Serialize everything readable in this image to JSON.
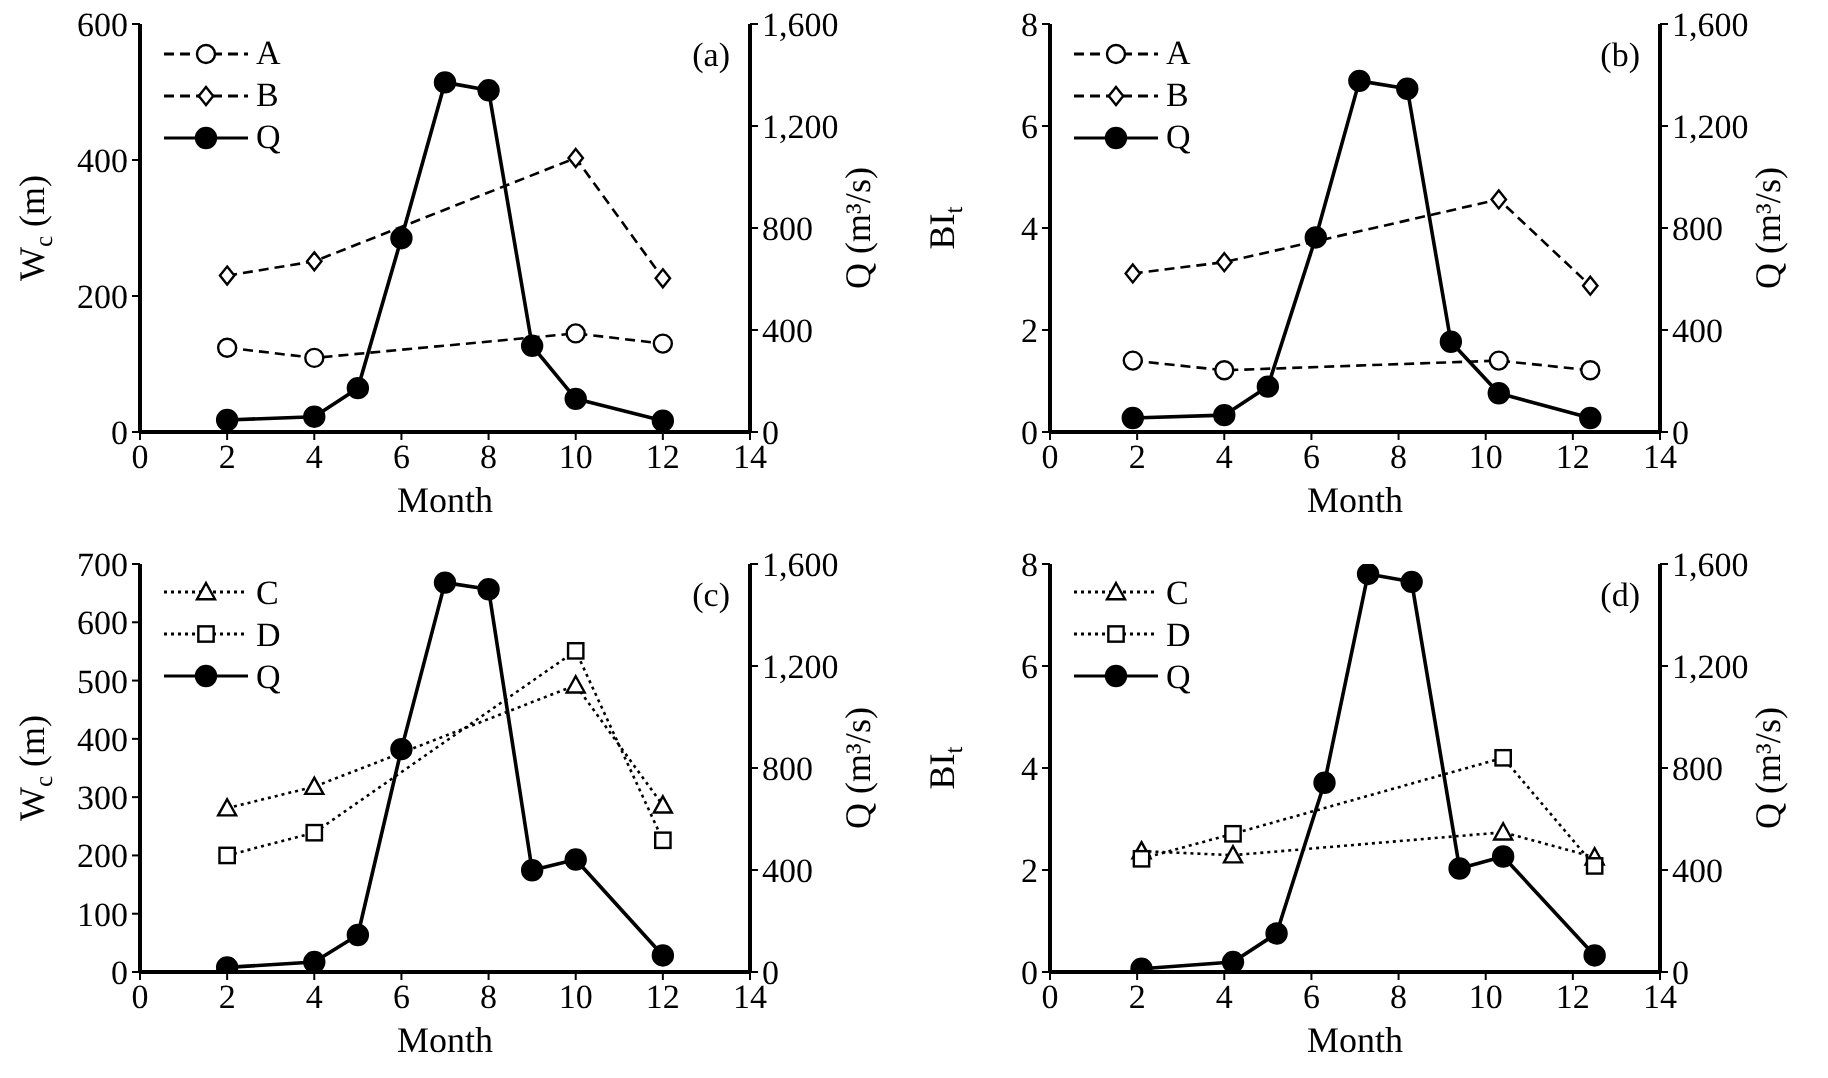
{
  "chart_data": [
    {
      "type": "line",
      "xlabel": "Month",
      "ylabel": "W$_{c}$ (m)",
      "y2label": "Q (m³/s)",
      "annotations": [
        "(a)"
      ],
      "xlim": [
        0,
        14
      ],
      "xticks": [
        0,
        2,
        4,
        6,
        8,
        10,
        12,
        14
      ],
      "ylim": [
        0,
        600
      ],
      "yticks": [
        0,
        200,
        400,
        600
      ],
      "y2lim": [
        0,
        1600
      ],
      "y2ticks": [
        {
          "value": 0,
          "label": "0"
        },
        {
          "value": 400,
          "label": "400"
        },
        {
          "value": 800,
          "label": "800"
        },
        {
          "value": 1200,
          "label": "1,200"
        },
        {
          "value": 1600,
          "label": "1,600"
        }
      ],
      "legend": "top left",
      "grid": false,
      "series": [
        {
          "name": "A",
          "color": "#000000",
          "marker": "circle",
          "line_style": "dashed",
          "x": [
            2,
            4,
            10,
            12
          ],
          "values": [
            124,
            109,
            145,
            130
          ]
        },
        {
          "name": "B",
          "color": "#000000",
          "marker": "diamond",
          "line_style": "dashed",
          "x": [
            2,
            4,
            10,
            12
          ],
          "values": [
            230,
            251,
            403,
            226
          ]
        },
        {
          "name": "Q",
          "color": "#000000",
          "marker": "circle",
          "line_style": "solid",
          "axis": "y2",
          "x": [
            2,
            4,
            5,
            6,
            7,
            8,
            9,
            10,
            12
          ],
          "values": [
            47,
            60,
            172,
            760,
            1371,
            1340,
            338,
            130,
            44
          ]
        }
      ]
    },
    {
      "type": "line",
      "xlabel": "Month",
      "ylabel": "BI$_{t}$",
      "y2label": "Q (m³/s)",
      "annotations": [
        "(b)"
      ],
      "xlim": [
        0,
        14
      ],
      "xticks": [
        0,
        2,
        4,
        6,
        8,
        10,
        12,
        14
      ],
      "ylim": [
        0,
        8
      ],
      "yticks": [
        0,
        2,
        4,
        6,
        8
      ],
      "y2lim": [
        0,
        1600
      ],
      "y2ticks": [
        {
          "value": 0,
          "label": "0"
        },
        {
          "value": 400,
          "label": "400"
        },
        {
          "value": 800,
          "label": "800"
        },
        {
          "value": 1200,
          "label": "1,200"
        },
        {
          "value": 1600,
          "label": "1,600"
        }
      ],
      "legend": "top left",
      "grid": false,
      "series": [
        {
          "name": "A",
          "color": "#000000",
          "marker": "circle",
          "line_style": "dashed",
          "x": [
            1.9,
            4,
            10.3,
            12.4
          ],
          "values": [
            1.4,
            1.21,
            1.4,
            1.21
          ]
        },
        {
          "name": "B",
          "color": "#000000",
          "marker": "diamond",
          "line_style": "dashed",
          "x": [
            1.9,
            4,
            10.3,
            12.4
          ],
          "values": [
            3.11,
            3.33,
            4.56,
            2.87
          ]
        },
        {
          "name": "Q",
          "color": "#000000",
          "marker": "circle",
          "line_style": "solid",
          "axis": "y2",
          "x": [
            1.9,
            4,
            5,
            6.1,
            7.1,
            8.2,
            9.2,
            10.3,
            12.4
          ],
          "values": [
            55,
            66,
            178,
            763,
            1377,
            1346,
            354,
            152,
            55
          ]
        }
      ]
    },
    {
      "type": "line",
      "xlabel": "Month",
      "ylabel": "W$_{c}$ (m)",
      "y2label": "Q (m³/s)",
      "annotations": [
        "(c)"
      ],
      "xlim": [
        0,
        14
      ],
      "xticks": [
        0,
        2,
        4,
        6,
        8,
        10,
        12,
        14
      ],
      "ylim": [
        0,
        700
      ],
      "yticks": [
        0,
        100,
        200,
        300,
        400,
        500,
        600,
        700
      ],
      "y2lim": [
        0,
        1600
      ],
      "y2ticks": [
        {
          "value": 0,
          "label": "0"
        },
        {
          "value": 400,
          "label": "400"
        },
        {
          "value": 800,
          "label": "800"
        },
        {
          "value": 1200,
          "label": "1,200"
        },
        {
          "value": 1600,
          "label": "1,600"
        }
      ],
      "legend": "top left",
      "grid": false,
      "series": [
        {
          "name": "C",
          "color": "#000000",
          "marker": "triangle",
          "line_style": "dotted",
          "x": [
            2,
            4,
            10,
            12
          ],
          "values": [
            281,
            318,
            492,
            286
          ]
        },
        {
          "name": "D",
          "color": "#000000",
          "marker": "square",
          "line_style": "dotted",
          "x": [
            2,
            4,
            10,
            12
          ],
          "values": [
            200,
            239,
            551,
            226
          ]
        },
        {
          "name": "Q",
          "color": "#000000",
          "marker": "circle",
          "line_style": "solid",
          "axis": "y2",
          "x": [
            2,
            4,
            5,
            6,
            7,
            8,
            9,
            10,
            12
          ],
          "values": [
            18,
            39,
            145,
            874,
            1527,
            1501,
            399,
            441,
            65
          ]
        }
      ]
    },
    {
      "type": "line",
      "xlabel": "Month",
      "ylabel": "BI$_{t}$",
      "y2label": "Q (m³/s)",
      "annotations": [
        "(d)"
      ],
      "xlim": [
        0,
        14
      ],
      "xticks": [
        0,
        2,
        4,
        6,
        8,
        10,
        12,
        14
      ],
      "ylim": [
        0,
        8
      ],
      "yticks": [
        0,
        2,
        4,
        6,
        8
      ],
      "y2lim": [
        0,
        1600
      ],
      "y2ticks": [
        {
          "value": 0,
          "label": "0"
        },
        {
          "value": 400,
          "label": "400"
        },
        {
          "value": 800,
          "label": "800"
        },
        {
          "value": 1200,
          "label": "1,200"
        },
        {
          "value": 1600,
          "label": "1,600"
        }
      ],
      "legend": "top left",
      "grid": false,
      "series": [
        {
          "name": "C",
          "color": "#000000",
          "marker": "triangle",
          "line_style": "dotted",
          "x": [
            2.1,
            4.2,
            10.4,
            12.5
          ],
          "values": [
            2.37,
            2.29,
            2.74,
            2.25
          ]
        },
        {
          "name": "D",
          "color": "#000000",
          "marker": "square",
          "line_style": "dotted",
          "x": [
            2.1,
            4.2,
            10.4,
            12.5
          ],
          "values": [
            2.22,
            2.71,
            4.2,
            2.08
          ]
        },
        {
          "name": "Q",
          "color": "#000000",
          "marker": "circle",
          "line_style": "solid",
          "axis": "y2",
          "x": [
            2.1,
            4.2,
            5.2,
            6.3,
            7.3,
            8.3,
            9.4,
            10.4,
            12.5
          ],
          "values": [
            13,
            39,
            151,
            742,
            1561,
            1530,
            406,
            453,
            65
          ]
        }
      ]
    }
  ]
}
